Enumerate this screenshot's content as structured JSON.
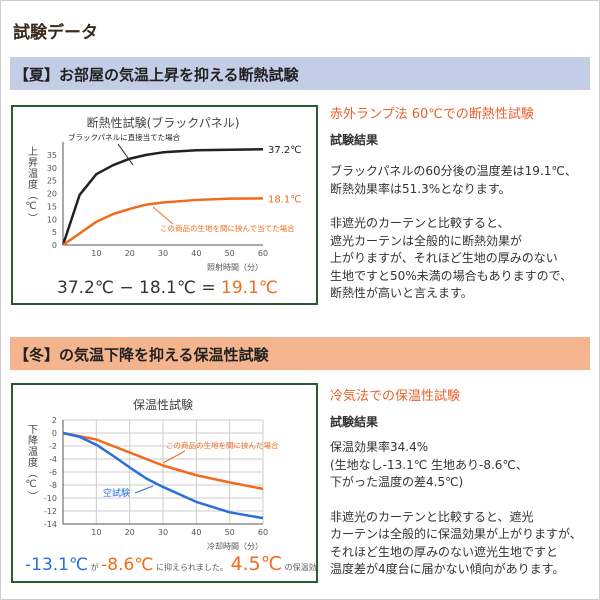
{
  "page_title": "試験データ",
  "summer": {
    "heading": "【夏】お部屋の気温上昇を抑える断熱試験",
    "text_title": "赤外ランプ法 60℃での断熱性試験",
    "result_label": "試験結果",
    "paragraphs": [
      "ブラックパネルの60分後の温度差は19.1℃、\n断熱効果率は51.3%となります。",
      "非遮光のカーテンと比較すると、\n遮光カーテンは全般的に断熱効果が\n上がりますが、それほど生地の厚みのない\n生地ですと50%未満の場合もありますので、\n断熱性が高いと言えます。"
    ]
  },
  "winter": {
    "heading": "【冬】の気温下降を抑える保温性試験",
    "text_title": "冷気法での保温性試験",
    "result_label": "試験結果",
    "paragraphs": [
      "保温効果率34.4%\n(生地なし-13.1℃ 生地あり-8.6℃、\n下がった温度の差4.5℃)",
      "非遮光のカーテンと比較すると、遮光\nカーテンは全般的に保温効果が上がりますが、\nそれほど生地の厚みのない遮光生地ですと\n温度差が4度台に届かない傾向があります。"
    ]
  },
  "chart_data": [
    {
      "type": "line",
      "title": "断熱性試験(ブラックパネル)",
      "xlabel": "照射時間（分）",
      "ylabel": "上昇温度（℃）",
      "xlim": [
        0,
        60
      ],
      "ylim": [
        0,
        40
      ],
      "xticks": [
        10,
        20,
        30,
        40,
        50,
        60
      ],
      "yticks": [
        0,
        5,
        10,
        15,
        20,
        25,
        30,
        35
      ],
      "grid": false,
      "series": [
        {
          "name": "ブラックパネルに直接当てた場合",
          "color": "#222222",
          "end_label": "37.2℃",
          "x": [
            0,
            5,
            10,
            15,
            20,
            25,
            30,
            40,
            50,
            60
          ],
          "y": [
            0,
            19.5,
            27.5,
            31,
            33.5,
            35,
            36,
            36.8,
            37,
            37.2
          ]
        },
        {
          "name": "この商品の生地を間に挟んで当てた場合",
          "color": "#f26a1b",
          "end_label": "18.1℃",
          "x": [
            0,
            5,
            10,
            15,
            20,
            25,
            30,
            40,
            50,
            60
          ],
          "y": [
            0,
            4.5,
            9,
            12,
            14,
            15.7,
            16.5,
            17.5,
            18,
            18.1
          ]
        }
      ],
      "formula": {
        "a": "37.2℃",
        "minus": "−",
        "b": "18.1℃",
        "equals": "=",
        "result": "19.1℃"
      }
    },
    {
      "type": "line",
      "title": "保温性試験",
      "xlabel": "冷却時間（分）",
      "ylabel": "下降温度（℃）",
      "xlim": [
        0,
        60
      ],
      "ylim": [
        -14,
        2
      ],
      "xticks": [
        10,
        20,
        30,
        40,
        50,
        60
      ],
      "yticks": [
        2,
        0,
        -2,
        -4,
        -6,
        -8,
        -10,
        -12,
        -14
      ],
      "grid": true,
      "series": [
        {
          "name": "この商品の生地を間に挟んだ場合",
          "color": "#f26a1b",
          "x": [
            0,
            5,
            10,
            15,
            20,
            25,
            30,
            40,
            50,
            60
          ],
          "y": [
            0,
            -0.5,
            -1,
            -2,
            -3,
            -4,
            -5,
            -6.5,
            -7.6,
            -8.6
          ]
        },
        {
          "name": "空試験",
          "color": "#2a6fdc",
          "x": [
            0,
            5,
            10,
            15,
            20,
            25,
            30,
            40,
            50,
            60
          ],
          "y": [
            0,
            -0.6,
            -1.8,
            -3.5,
            -5.3,
            -7,
            -8.3,
            -10.6,
            -12.2,
            -13.1
          ]
        }
      ],
      "summary": {
        "blue_value": "-13.1℃",
        "ga": "が",
        "orange_value": "-8.6℃",
        "middle": "に抑えられました。",
        "effect_value": "4.5℃",
        "suffix": "の保温効果"
      }
    }
  ]
}
